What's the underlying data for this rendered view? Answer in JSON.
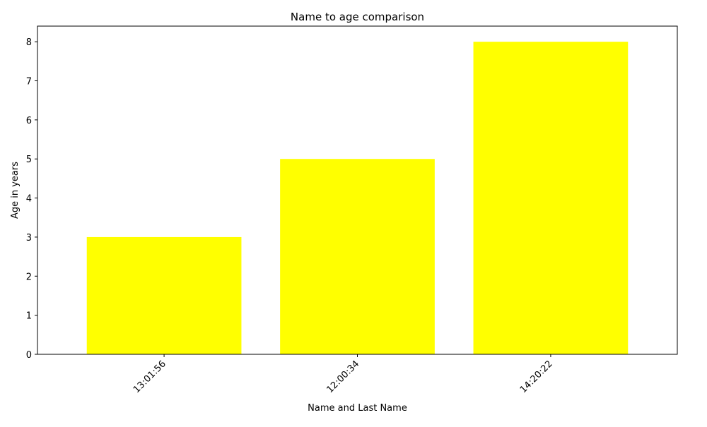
{
  "chart_data": {
    "type": "bar",
    "title": "Name to age comparison",
    "xlabel": "Name and Last Name",
    "ylabel": "Age in years",
    "categories": [
      "13:01:56",
      "12:00:34",
      "14:20:22"
    ],
    "values": [
      3,
      5,
      8
    ],
    "ylim": [
      0,
      8.4
    ],
    "yticks": [
      0,
      1,
      2,
      3,
      4,
      5,
      6,
      7,
      8
    ],
    "bar_color": "#ffff00",
    "grid": false,
    "x_tick_rotation_deg": 45
  }
}
